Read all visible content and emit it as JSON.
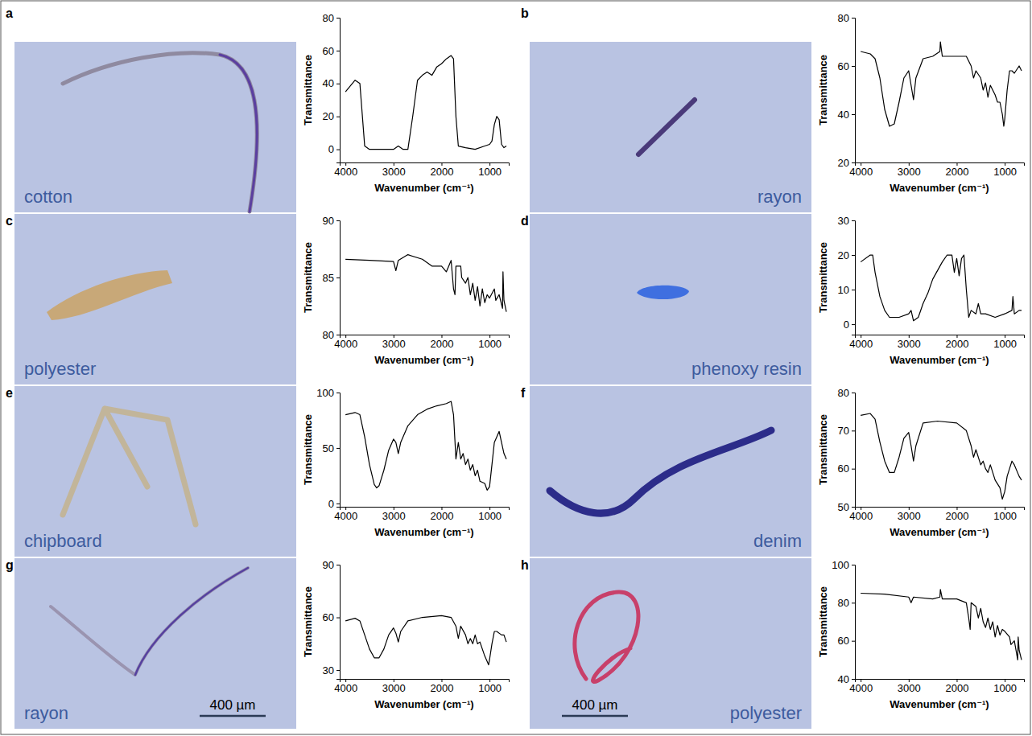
{
  "chart_data": [
    {
      "type": "line",
      "panel": "a",
      "title": "cotton",
      "x_label": "Wavenumber (cm⁻¹)",
      "y_label": "Transmittance",
      "color": "#000000",
      "xlim": [
        4120,
        600
      ],
      "ylim": [
        -8,
        80
      ],
      "xticks": [
        4000,
        3000,
        2000,
        1000
      ],
      "yticks": [
        0,
        20,
        40,
        60,
        80
      ],
      "x": [
        4000,
        3800,
        3700,
        3600,
        3500,
        3000,
        2900,
        2800,
        2700,
        2600,
        2500,
        2400,
        2300,
        2200,
        2100,
        2000,
        1900,
        1800,
        1750,
        1700,
        1650,
        1500,
        1300,
        1100,
        1000,
        950,
        900,
        850,
        800,
        750,
        700,
        650
      ],
      "values": [
        35,
        42,
        40,
        2,
        0,
        0,
        2,
        0,
        0,
        20,
        42,
        45,
        47,
        45,
        50,
        52,
        55,
        57,
        55,
        20,
        2,
        1,
        0,
        2,
        3,
        5,
        15,
        20,
        18,
        3,
        1,
        2
      ]
    },
    {
      "type": "line",
      "panel": "b",
      "title": "rayon",
      "x_label": "Wavenumber (cm⁻¹)",
      "y_label": "Transmittance",
      "color": "#000000",
      "xlim": [
        4120,
        600
      ],
      "ylim": [
        20,
        80
      ],
      "xticks": [
        4000,
        3000,
        2000,
        1000
      ],
      "yticks": [
        20,
        40,
        60,
        80
      ],
      "x": [
        4000,
        3800,
        3700,
        3600,
        3500,
        3400,
        3300,
        3200,
        3100,
        3000,
        2950,
        2900,
        2850,
        2700,
        2500,
        2350,
        2340,
        2300,
        2000,
        1800,
        1700,
        1650,
        1600,
        1500,
        1450,
        1400,
        1350,
        1300,
        1200,
        1150,
        1100,
        1050,
        1020,
        1000,
        950,
        900,
        850,
        800,
        700,
        650
      ],
      "values": [
        66,
        65,
        63,
        55,
        42,
        35,
        36,
        45,
        55,
        58,
        52,
        46,
        55,
        63,
        64,
        66,
        70,
        64,
        64,
        64,
        60,
        55,
        58,
        55,
        50,
        53,
        47,
        52,
        48,
        45,
        45,
        40,
        35,
        38,
        50,
        58,
        58,
        57,
        60,
        58
      ]
    },
    {
      "type": "line",
      "panel": "c",
      "title": "polyester",
      "x_label": "Wavenumber (cm⁻¹)",
      "y_label": "Transmittance",
      "color": "#000000",
      "xlim": [
        4120,
        600
      ],
      "ylim": [
        80,
        90
      ],
      "xticks": [
        4000,
        3000,
        2000,
        1000
      ],
      "yticks": [
        80,
        85,
        90
      ],
      "x": [
        4000,
        3500,
        3000,
        2950,
        2900,
        2700,
        2400,
        2200,
        2000,
        1900,
        1800,
        1750,
        1720,
        1700,
        1600,
        1580,
        1500,
        1450,
        1400,
        1350,
        1300,
        1250,
        1200,
        1150,
        1100,
        1050,
        1000,
        900,
        870,
        800,
        730,
        720,
        700,
        650
      ],
      "values": [
        86.6,
        86.5,
        86.4,
        85.6,
        86.5,
        87,
        86.6,
        86,
        86,
        85.5,
        86.5,
        84,
        83.5,
        86,
        86,
        85,
        84.5,
        85,
        83.5,
        84.5,
        83,
        84.2,
        82.5,
        84,
        82.8,
        83.5,
        83.2,
        84,
        83,
        83.5,
        82.3,
        85.5,
        83,
        82
      ]
    },
    {
      "type": "line",
      "panel": "d",
      "title": "phenoxy resin",
      "x_label": "Wavenumber (cm⁻¹)",
      "y_label": "Transmittance",
      "color": "#000000",
      "xlim": [
        4120,
        600
      ],
      "ylim": [
        -3,
        30
      ],
      "xticks": [
        4000,
        3000,
        2000,
        1000
      ],
      "yticks": [
        0,
        10,
        20,
        30
      ],
      "x": [
        4000,
        3800,
        3750,
        3700,
        3600,
        3500,
        3400,
        3200,
        3000,
        2950,
        2900,
        2800,
        2700,
        2600,
        2500,
        2300,
        2200,
        2100,
        2050,
        2000,
        1950,
        1900,
        1850,
        1800,
        1750,
        1700,
        1600,
        1550,
        1500,
        1400,
        1200,
        1000,
        850,
        830,
        800,
        700,
        650
      ],
      "values": [
        18,
        20,
        20,
        15,
        8,
        4,
        2,
        2,
        3,
        4,
        1,
        2,
        6,
        9,
        13,
        18,
        20,
        20,
        15,
        19,
        14,
        19,
        20,
        10,
        2,
        4,
        3,
        6,
        3,
        3,
        2,
        3,
        4,
        8,
        3,
        4,
        4
      ]
    },
    {
      "type": "line",
      "panel": "e",
      "title": "chipboard",
      "x_label": "Wavenumber (cm⁻¹)",
      "y_label": "Transmittance",
      "color": "#000000",
      "xlim": [
        4120,
        600
      ],
      "ylim": [
        -3,
        100
      ],
      "xticks": [
        4000,
        3000,
        2000,
        1000
      ],
      "yticks": [
        0,
        50,
        100
      ],
      "x": [
        4000,
        3800,
        3700,
        3600,
        3500,
        3400,
        3350,
        3300,
        3200,
        3100,
        3000,
        2950,
        2900,
        2850,
        2700,
        2500,
        2300,
        2100,
        1900,
        1800,
        1750,
        1700,
        1650,
        1600,
        1550,
        1500,
        1450,
        1400,
        1350,
        1300,
        1250,
        1200,
        1100,
        1050,
        1000,
        950,
        900,
        850,
        800,
        750,
        700,
        650
      ],
      "values": [
        80,
        82,
        80,
        60,
        35,
        17,
        14,
        16,
        30,
        48,
        58,
        55,
        45,
        55,
        70,
        80,
        85,
        88,
        90,
        92,
        80,
        40,
        55,
        40,
        45,
        35,
        40,
        30,
        35,
        25,
        30,
        20,
        18,
        12,
        15,
        35,
        55,
        60,
        65,
        55,
        45,
        40
      ]
    },
    {
      "type": "line",
      "panel": "f",
      "title": "denim",
      "x_label": "Wavenumber (cm⁻¹)",
      "y_label": "Transmittance",
      "color": "#000000",
      "xlim": [
        4120,
        600
      ],
      "ylim": [
        50,
        80
      ],
      "xticks": [
        4000,
        3000,
        2000,
        1000
      ],
      "yticks": [
        50,
        60,
        70,
        80
      ],
      "x": [
        4000,
        3800,
        3700,
        3600,
        3500,
        3400,
        3300,
        3200,
        3100,
        3000,
        2950,
        2900,
        2850,
        2700,
        2400,
        2000,
        1800,
        1700,
        1650,
        1600,
        1500,
        1450,
        1400,
        1350,
        1300,
        1200,
        1150,
        1100,
        1050,
        1000,
        950,
        900,
        850,
        800,
        700,
        650
      ],
      "values": [
        74,
        74.5,
        73,
        67,
        62,
        59,
        59,
        63,
        68,
        69.5,
        66,
        62,
        66,
        72,
        72.5,
        72,
        70,
        66,
        63,
        65,
        61,
        62,
        60,
        59,
        61,
        57,
        56,
        55,
        52,
        54,
        58,
        60,
        62,
        61,
        58,
        57
      ]
    },
    {
      "type": "line",
      "panel": "g",
      "title": "rayon",
      "scale_bar": "400 µm",
      "x_label": "Wavenumber (cm⁻¹)",
      "y_label": "Transmittance",
      "color": "#000000",
      "xlim": [
        4120,
        600
      ],
      "ylim": [
        25,
        90
      ],
      "xticks": [
        4000,
        3000,
        2000,
        1000
      ],
      "yticks": [
        30,
        60,
        90
      ],
      "x": [
        4000,
        3800,
        3700,
        3600,
        3500,
        3400,
        3300,
        3200,
        3100,
        3000,
        2950,
        2900,
        2850,
        2700,
        2400,
        2000,
        1800,
        1700,
        1650,
        1600,
        1500,
        1450,
        1400,
        1350,
        1300,
        1250,
        1200,
        1150,
        1100,
        1050,
        1020,
        1000,
        950,
        900,
        850,
        750,
        700,
        650
      ],
      "values": [
        58,
        59.5,
        58,
        50,
        42,
        37,
        37,
        42,
        50,
        54,
        51,
        46,
        52,
        58,
        60,
        61,
        60,
        55,
        48,
        55,
        50,
        45,
        48,
        45,
        50,
        45,
        46,
        42,
        38,
        35,
        33,
        36,
        45,
        52,
        52,
        50,
        50,
        46
      ]
    },
    {
      "type": "line",
      "panel": "h",
      "title": "polyester",
      "scale_bar": "400 µm",
      "x_label": "Wavenumber (cm⁻¹)",
      "y_label": "Transmittance",
      "color": "#000000",
      "xlim": [
        4120,
        600
      ],
      "ylim": [
        40,
        100
      ],
      "xticks": [
        4000,
        3000,
        2000,
        1000
      ],
      "yticks": [
        40,
        60,
        80,
        100
      ],
      "x": [
        4000,
        3500,
        3000,
        2950,
        2900,
        2500,
        2350,
        2340,
        2300,
        2000,
        1800,
        1750,
        1720,
        1700,
        1600,
        1550,
        1500,
        1450,
        1400,
        1350,
        1300,
        1250,
        1200,
        1150,
        1100,
        1050,
        1000,
        900,
        870,
        800,
        730,
        720,
        700,
        650
      ],
      "values": [
        85,
        84.5,
        83,
        80,
        83,
        82,
        83,
        87,
        82,
        82,
        80,
        72,
        66,
        80,
        78,
        72,
        77,
        70,
        67,
        72,
        66,
        70,
        62,
        68,
        63,
        66,
        65,
        62,
        58,
        60,
        50,
        62,
        55,
        50
      ]
    }
  ]
}
